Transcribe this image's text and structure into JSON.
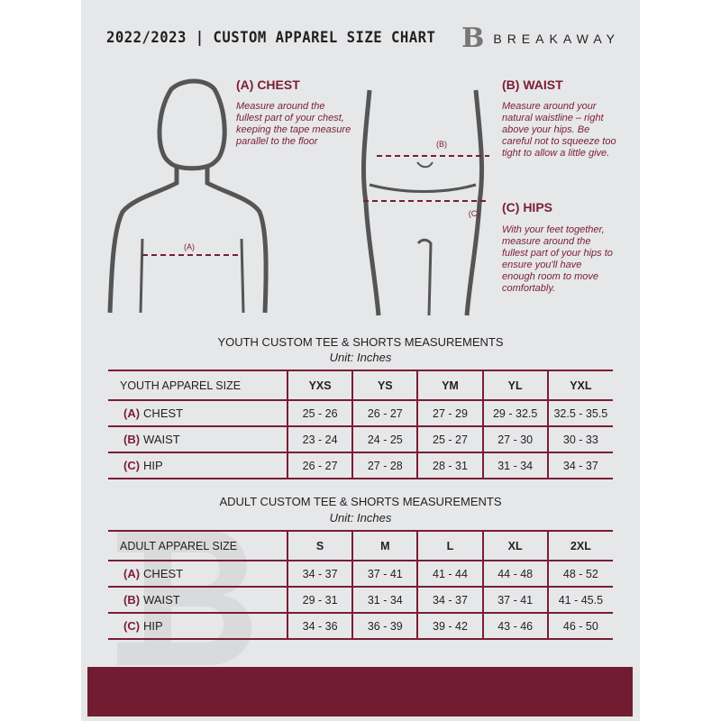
{
  "header": {
    "title": "2022/2023  |  CUSTOM APPAREL SIZE CHART",
    "brand": "BREAKAWAY",
    "logo_letter": "B"
  },
  "colors": {
    "accent": "#7a1e33",
    "background": "#e6e7e8",
    "band": "#721c31"
  },
  "chest": {
    "heading": "(A) CHEST",
    "text": "Measure around the fullest part of your chest, keeping the tape measure parallel to the floor",
    "marker": "(A)"
  },
  "waist": {
    "heading": "(B) WAIST",
    "text": "Measure around your natural waistline – right above your hips. Be careful not to squeeze too tight to allow a little give.",
    "marker": "(B)"
  },
  "hips": {
    "heading": "(C) HIPS",
    "text": "With your feet together, measure around the fullest part of your hips to ensure you'll have enough room to move comfortably.",
    "marker": "(C)"
  },
  "youth": {
    "title": "YOUTH CUSTOM TEE & SHORTS MEASUREMENTS",
    "unit": "Unit: Inches",
    "header": [
      "YOUTH APPAREL SIZE",
      "YXS",
      "YS",
      "YM",
      "YL",
      "YXL"
    ],
    "rows": [
      {
        "code": "(A)",
        "label": "CHEST",
        "values": [
          "25 - 26",
          "26 - 27",
          "27 - 29",
          "29 - 32.5",
          "32.5 - 35.5"
        ]
      },
      {
        "code": "(B)",
        "label": "WAIST",
        "values": [
          "23 - 24",
          "24 - 25",
          "25 - 27",
          "27 - 30",
          "30 - 33"
        ]
      },
      {
        "code": "(C)",
        "label": "HIP",
        "values": [
          "26 - 27",
          "27 - 28",
          "28 - 31",
          "31 - 34",
          "34 - 37"
        ]
      }
    ]
  },
  "adult": {
    "title": "ADULT CUSTOM TEE & SHORTS MEASUREMENTS",
    "unit": "Unit: Inches",
    "header": [
      "ADULT APPAREL SIZE",
      "S",
      "M",
      "L",
      "XL",
      "2XL"
    ],
    "rows": [
      {
        "code": "(A)",
        "label": "CHEST",
        "values": [
          "34 - 37",
          "37 - 41",
          "41 - 44",
          "44 - 48",
          "48 - 52"
        ]
      },
      {
        "code": "(B)",
        "label": "WAIST",
        "values": [
          "29 - 31",
          "31 - 34",
          "34 - 37",
          "37 - 41",
          "41 - 45.5"
        ]
      },
      {
        "code": "(C)",
        "label": "HIP",
        "values": [
          "34 - 36",
          "36 - 39",
          "39 - 42",
          "43 - 46",
          "46 - 50"
        ]
      }
    ]
  }
}
